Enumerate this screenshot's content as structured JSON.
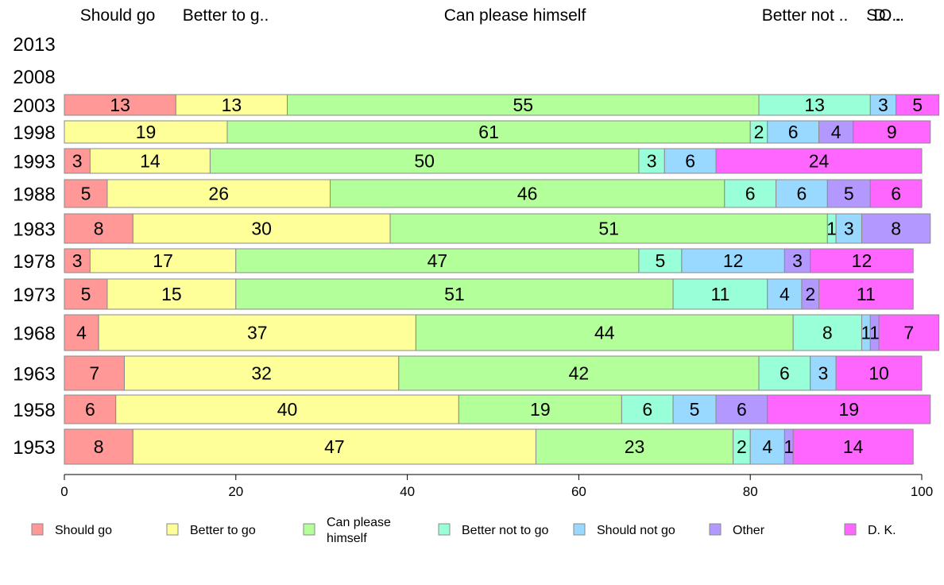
{
  "chart_data": {
    "type": "bar",
    "orientation": "horizontal",
    "stacked": true,
    "title": "",
    "xlabel": "",
    "ylabel": "",
    "xlim": [
      0,
      100
    ],
    "xticks": [
      0,
      20,
      40,
      60,
      80,
      100
    ],
    "grid": false,
    "legend_position": "bottom",
    "top_labels": [
      "Should go",
      "Better to g..",
      "Can please himself",
      "Better not ..",
      "S..",
      "O..",
      "D. .."
    ],
    "categories": [
      "2013",
      "2008",
      "2003",
      "1998",
      "1993",
      "1988",
      "1983",
      "1978",
      "1973",
      "1968",
      "1963",
      "1958",
      "1953"
    ],
    "series": [
      {
        "name": "Should go",
        "legend_lines": [
          "Should go"
        ],
        "color": "#ff9896",
        "values": [
          null,
          null,
          13,
          0,
          3,
          5,
          8,
          3,
          5,
          4,
          7,
          6,
          8
        ]
      },
      {
        "name": "Better to go",
        "legend_lines": [
          "Better to go"
        ],
        "color": "#ffff99",
        "values": [
          null,
          null,
          13,
          19,
          14,
          26,
          30,
          17,
          15,
          37,
          32,
          40,
          47
        ]
      },
      {
        "name": "Can please himself",
        "legend_lines": [
          "Can please",
          "himself"
        ],
        "color": "#b3ff99",
        "values": [
          null,
          null,
          55,
          61,
          50,
          46,
          51,
          47,
          51,
          44,
          42,
          19,
          23
        ]
      },
      {
        "name": "Better not to go",
        "legend_lines": [
          "Better not to go"
        ],
        "color": "#99ffd8",
        "values": [
          null,
          null,
          13,
          2,
          3,
          6,
          1,
          5,
          11,
          8,
          6,
          6,
          2
        ]
      },
      {
        "name": "Should not go",
        "legend_lines": [
          "Should not go"
        ],
        "color": "#99d8ff",
        "values": [
          null,
          null,
          3,
          6,
          6,
          6,
          3,
          12,
          4,
          1,
          3,
          5,
          4
        ]
      },
      {
        "name": "Other",
        "legend_lines": [
          "Other"
        ],
        "color": "#b399ff",
        "values": [
          null,
          null,
          0,
          4,
          0,
          5,
          8,
          3,
          2,
          1,
          0,
          6,
          1
        ]
      },
      {
        "name": "D. K.",
        "legend_lines": [
          "D. K."
        ],
        "color": "#ff66ff",
        "values": [
          null,
          null,
          5,
          9,
          24,
          6,
          0,
          12,
          11,
          7,
          10,
          19,
          14
        ]
      }
    ]
  }
}
